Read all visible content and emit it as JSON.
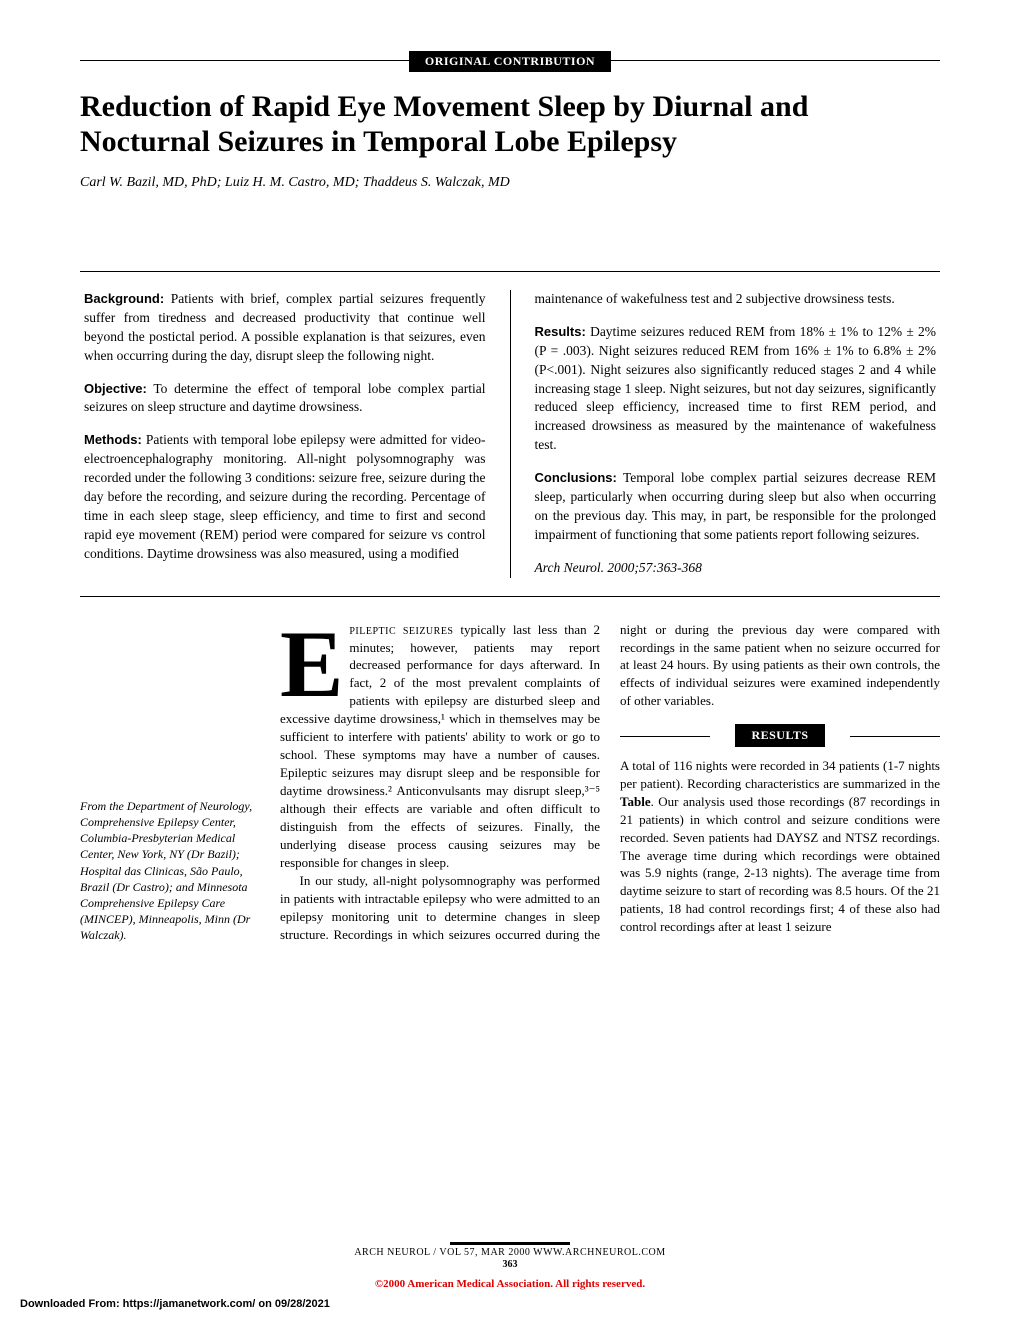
{
  "header": {
    "section_label": "ORIGINAL CONTRIBUTION",
    "title": "Reduction of Rapid Eye Movement Sleep by Diurnal and Nocturnal Seizures in Temporal Lobe Epilepsy",
    "authors": "Carl W. Bazil, MD, PhD; Luiz H. M. Castro, MD; Thaddeus S. Walczak, MD"
  },
  "abstract": {
    "background": {
      "head": "Background:",
      "text": " Patients with brief, complex partial seizures frequently suffer from tiredness and decreased productivity that continue well beyond the postictal period. A possible explanation is that seizures, even when occurring during the day, disrupt sleep the following night."
    },
    "objective": {
      "head": "Objective:",
      "text": " To determine the effect of temporal lobe complex partial seizures on sleep structure and daytime drowsiness."
    },
    "methods": {
      "head": "Methods:",
      "text": " Patients with temporal lobe epilepsy were admitted for video-electroencephalography monitoring. All-night polysomnography was recorded under the following 3 conditions: seizure free, seizure during the day before the recording, and seizure during the recording. Percentage of time in each sleep stage, sleep efficiency, and time to first and second rapid eye movement (REM) period were compared for seizure vs control conditions. Daytime drowsiness was also measured, using a modified"
    },
    "methods_cont": "maintenance of wakefulness test and 2 subjective drowsiness tests.",
    "results": {
      "head": "Results:",
      "text": " Daytime seizures reduced REM from 18% ± 1% to 12% ± 2% (P = .003). Night seizures reduced REM from 16% ± 1% to 6.8% ± 2% (P<.001). Night seizures also significantly reduced stages 2 and 4 while increasing stage 1 sleep. Night seizures, but not day seizures, significantly reduced sleep efficiency, increased time to first REM period, and increased drowsiness as measured by the maintenance of wakefulness test."
    },
    "conclusions": {
      "head": "Conclusions:",
      "text": " Temporal lobe complex partial seizures decrease REM sleep, particularly when occurring during sleep but also when occurring on the previous day. This may, in part, be responsible for the prolonged impairment of functioning that some patients report following seizures."
    },
    "citation": "Arch Neurol. 2000;57:363-368"
  },
  "body": {
    "dropcap": "E",
    "p1_caps": "PILEPTIC SEIZURES",
    "p1": " typically last less than 2 minutes; however, patients may report decreased performance for days afterward. In fact, 2 of the most prevalent complaints of patients with epilepsy are disturbed sleep and excessive daytime drowsiness,¹ which in themselves may be sufficient to interfere with patients' ability to work or go to school. These symptoms may have a number of causes. Epileptic seizures may disrupt sleep and be responsible for daytime drowsiness.² Anticonvulsants may disrupt sleep,³⁻⁵ although their effects are variable and often difficult to distinguish from the effects of seizures. Finally, the underlying disease process causing seizures may be responsible for changes in sleep.",
    "p2": "In our study, all-night polysomnography was performed in patients with intractable epilepsy who were admitted to an epilepsy monitoring unit to determine changes in sleep structure. Recordings in which seizures occurred during the night",
    "p2_cont": "or during the previous day were compared with recordings in the same patient when no seizure occurred for at least 24 hours. By using patients as their own controls, the effects of individual seizures were examined independently of other variables.",
    "results_label": "RESULTS",
    "p3a": "A total of 116 nights were recorded in 34 patients (1-7 nights per patient). Recording characteristics are summarized in the ",
    "p3_bold": "Table",
    "p3b": ". Our analysis used those recordings (87 recordings in 21 patients) in which control and seizure conditions were recorded. Seven patients had DAYSZ and NTSZ recordings. The average time during which recordings were obtained was 5.9 nights (range, 2-13 nights). The average time from daytime seizure to start of recording was 8.5 hours. Of the 21 patients, 18 had control recordings first; 4 of these also had control recordings after at least 1 seizure"
  },
  "affiliation": "From the Department of Neurology, Comprehensive Epilepsy Center, Columbia-Presbyterian Medical Center, New York, NY (Dr Bazil); Hospital das Clinicas, São Paulo, Brazil (Dr Castro); and Minnesota Comprehensive Epilepsy Care (MINCEP), Minneapolis, Minn (Dr Walczak).",
  "footer": {
    "line1": "ARCH NEUROL / VOL 57, MAR 2000     WWW.ARCHNEUROL.COM",
    "page": "363",
    "copyright": "©2000 American Medical Association. All rights reserved.",
    "downloaded": "Downloaded From: https://jamanetwork.com/ on 09/28/2021"
  }
}
